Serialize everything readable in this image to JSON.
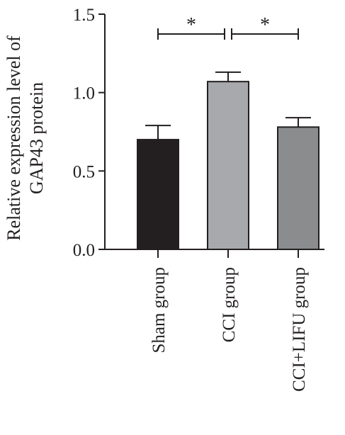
{
  "chart_data": {
    "type": "bar",
    "title": "",
    "xlabel": "",
    "ylabel_lines": [
      "Relative expression level of",
      "GAP43 protein"
    ],
    "categories": [
      "Sham group",
      "CCI group",
      "CCI+LIFU group"
    ],
    "values": [
      0.7,
      1.07,
      0.78
    ],
    "errors": [
      0.09,
      0.06,
      0.06
    ],
    "bar_colors": [
      "#231f20",
      "#a7a9ac",
      "#8a8c8e"
    ],
    "ylim": [
      0,
      1.5
    ],
    "yticks": [
      "0.0",
      "0.5",
      "1.0",
      "1.5"
    ],
    "grid": false,
    "significance": [
      {
        "from": 0,
        "to": 1,
        "label": "*"
      },
      {
        "from": 1,
        "to": 2,
        "label": "*"
      }
    ]
  }
}
